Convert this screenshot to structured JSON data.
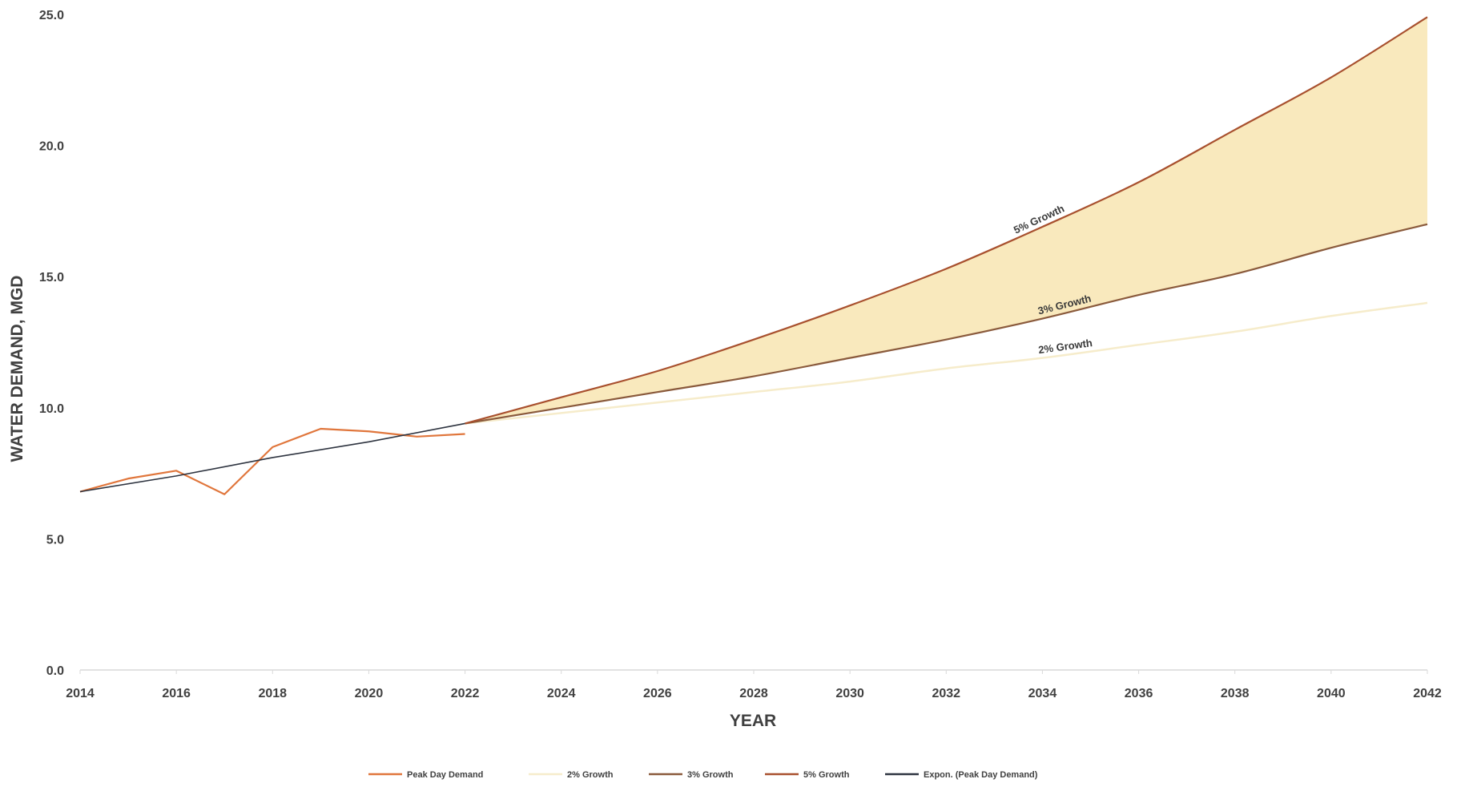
{
  "chart_data": {
    "type": "line",
    "title": "",
    "xlabel": "YEAR",
    "ylabel": "WATER DEMAND, MGD",
    "xlim": [
      2014,
      2042
    ],
    "ylim": [
      0,
      25
    ],
    "x_ticks": [
      "2014",
      "2016",
      "2018",
      "2020",
      "2022",
      "2024",
      "2026",
      "2028",
      "2030",
      "2032",
      "2034",
      "2036",
      "2038",
      "2040",
      "2042"
    ],
    "y_ticks": [
      "0.0",
      "5.0",
      "10.0",
      "15.0",
      "20.0",
      "25.0"
    ],
    "grid": false,
    "legend_position": "bottom",
    "shaded_band": {
      "between": [
        "3% Growth",
        "5% Growth"
      ],
      "color": "#f8e7b6"
    },
    "series": [
      {
        "name": "Peak Day Demand",
        "color": "#e0763c",
        "x": [
          2014,
          2015,
          2016,
          2017,
          2018,
          2019,
          2020,
          2021,
          2022
        ],
        "y": [
          6.8,
          7.3,
          7.6,
          6.7,
          8.5,
          9.2,
          9.1,
          8.9,
          9.0
        ]
      },
      {
        "name": "2% Growth",
        "color": "#f6eccb",
        "x": [
          2022,
          2024,
          2026,
          2028,
          2030,
          2032,
          2034,
          2036,
          2038,
          2040,
          2042
        ],
        "y": [
          9.4,
          9.8,
          10.2,
          10.6,
          11.0,
          11.5,
          11.9,
          12.4,
          12.9,
          13.5,
          14.0
        ]
      },
      {
        "name": "3% Growth",
        "color": "#8a5a3c",
        "x": [
          2022,
          2024,
          2026,
          2028,
          2030,
          2032,
          2034,
          2036,
          2038,
          2040,
          2042
        ],
        "y": [
          9.4,
          10.0,
          10.6,
          11.2,
          11.9,
          12.6,
          13.4,
          14.3,
          15.1,
          16.1,
          17.0
        ]
      },
      {
        "name": "5% Growth",
        "color": "#a8502e",
        "x": [
          2022,
          2024,
          2026,
          2028,
          2030,
          2032,
          2034,
          2036,
          2038,
          2040,
          2042
        ],
        "y": [
          9.4,
          10.4,
          11.4,
          12.6,
          13.9,
          15.3,
          16.9,
          18.6,
          20.6,
          22.6,
          24.9
        ]
      },
      {
        "name": "Expon. (Peak Day Demand)",
        "color": "#2e3440",
        "x": [
          2014,
          2016,
          2018,
          2020,
          2022
        ],
        "y": [
          6.8,
          7.4,
          8.1,
          8.7,
          9.4
        ]
      }
    ],
    "annotations": [
      {
        "text": "5% Growth",
        "series": "5% Growth",
        "at_x": 2034
      },
      {
        "text": "3% Growth",
        "series": "3% Growth",
        "at_x": 2034.5
      },
      {
        "text": "2% Growth",
        "series": "2% Growth",
        "at_x": 2034.5
      }
    ]
  }
}
